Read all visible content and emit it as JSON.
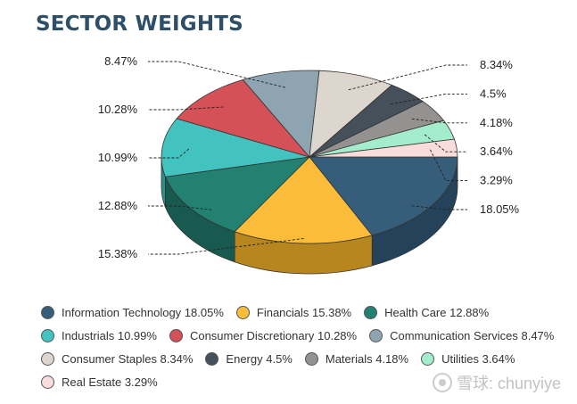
{
  "title": "SECTOR WEIGHTS",
  "chart_data": {
    "type": "pie",
    "title": "SECTOR WEIGHTS",
    "unit": "%",
    "legend_position": "bottom",
    "slices": [
      {
        "name": "Information Technology",
        "value": 18.05,
        "label": "18.05%",
        "color": "#365e7b",
        "side": "#24435a"
      },
      {
        "name": "Financials",
        "value": 15.38,
        "label": "15.38%",
        "color": "#fbbc3a",
        "side": "#b7861f"
      },
      {
        "name": "Health Care",
        "value": 12.88,
        "label": "12.88%",
        "color": "#238172",
        "side": "#185a50"
      },
      {
        "name": "Industrials",
        "value": 10.99,
        "label": "10.99%",
        "color": "#42c3c0",
        "side": "#2b8f8c"
      },
      {
        "name": "Consumer Discretionary",
        "value": 10.28,
        "label": "10.28%",
        "color": "#d35157",
        "side": "#9b3a3e"
      },
      {
        "name": "Communication Services",
        "value": 8.47,
        "label": "8.47%",
        "color": "#8fa4b1",
        "side": "#66777f"
      },
      {
        "name": "Consumer Staples",
        "value": 8.34,
        "label": "8.34%",
        "color": "#ddd6cf",
        "side": "#a9a29c"
      },
      {
        "name": "Energy",
        "value": 4.5,
        "label": "4.5%",
        "color": "#45505a",
        "side": "#2d353c"
      },
      {
        "name": "Materials",
        "value": 4.18,
        "label": "4.18%",
        "color": "#949291",
        "side": "#6b6a69"
      },
      {
        "name": "Utilities",
        "value": 3.64,
        "label": "3.64%",
        "color": "#a3eccc",
        "side": "#72b597"
      },
      {
        "name": "Real Estate",
        "value": 3.29,
        "label": "3.29%",
        "color": "#f9dcdc",
        "side": "#c4a6a6"
      }
    ]
  },
  "legend": [
    [
      {
        "text": "Information Technology 18.05%",
        "color": "#365e7b"
      },
      {
        "text": "Financials 15.38%",
        "color": "#fbbc3a"
      },
      {
        "text": "Health Care 12.88%",
        "color": "#238172"
      }
    ],
    [
      {
        "text": "Industrials 10.99%",
        "color": "#42c3c0"
      },
      {
        "text": "Consumer Discretionary 10.28%",
        "color": "#d35157"
      },
      {
        "text": "Communication Services 8.47%",
        "color": "#8fa4b1"
      }
    ],
    [
      {
        "text": "Consumer Staples 8.34%",
        "color": "#ddd6cf"
      },
      {
        "text": "Energy 4.5%",
        "color": "#45505a"
      },
      {
        "text": "Materials 4.18%",
        "color": "#949291"
      },
      {
        "text": "Utilities 3.64%",
        "color": "#a3eccc"
      }
    ],
    [
      {
        "text": "Real Estate 3.29%",
        "color": "#f9dcdc"
      }
    ]
  ],
  "watermark": {
    "text": "雪球: chunyiye",
    "icon": "snowball-logo-icon"
  }
}
